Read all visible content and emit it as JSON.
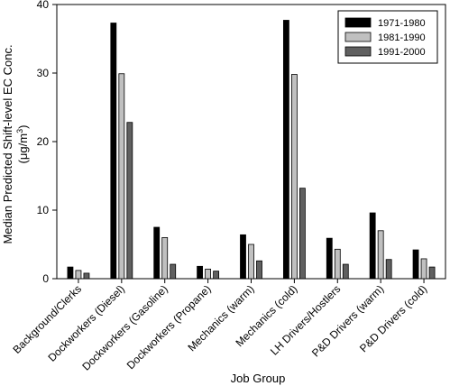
{
  "chart_data": {
    "type": "bar",
    "xlabel": "Job Group",
    "ylabel_line1": "Median Predicted Shift-level EC Conc.",
    "ylabel_line2_prefix": "(",
    "ylabel_unit_mu": "μ",
    "ylabel_unit_rest": "g/m",
    "ylabel_unit_sup": "3",
    "ylabel_line2_suffix": ")",
    "ylim": [
      0,
      40
    ],
    "yticks": [
      0,
      10,
      20,
      30,
      40
    ],
    "legend_position": "top-right",
    "grid": false,
    "categories": [
      "Background/Clerks",
      "Dockworkers (Diesel)",
      "Dockworkers (Gasoline)",
      "Dockworkers (Propane)",
      "Mechanics (warm)",
      "Mechanics (cold)",
      "LH Drivers/Hostlers",
      "P&D Drivers (warm)",
      "P&D Drivers (cold)"
    ],
    "series": [
      {
        "name": "1971-1980",
        "color": "#000000",
        "values": [
          1.7,
          37.3,
          7.5,
          1.8,
          6.4,
          37.7,
          5.9,
          9.6,
          4.2
        ]
      },
      {
        "name": "1981-1990",
        "color": "#c0c0c0",
        "values": [
          1.2,
          29.9,
          6.0,
          1.4,
          5.0,
          29.8,
          4.3,
          7.0,
          2.9
        ]
      },
      {
        "name": "1991-2000",
        "color": "#606060",
        "values": [
          0.8,
          22.8,
          2.1,
          1.1,
          2.6,
          13.2,
          2.1,
          2.8,
          1.7
        ]
      }
    ]
  }
}
